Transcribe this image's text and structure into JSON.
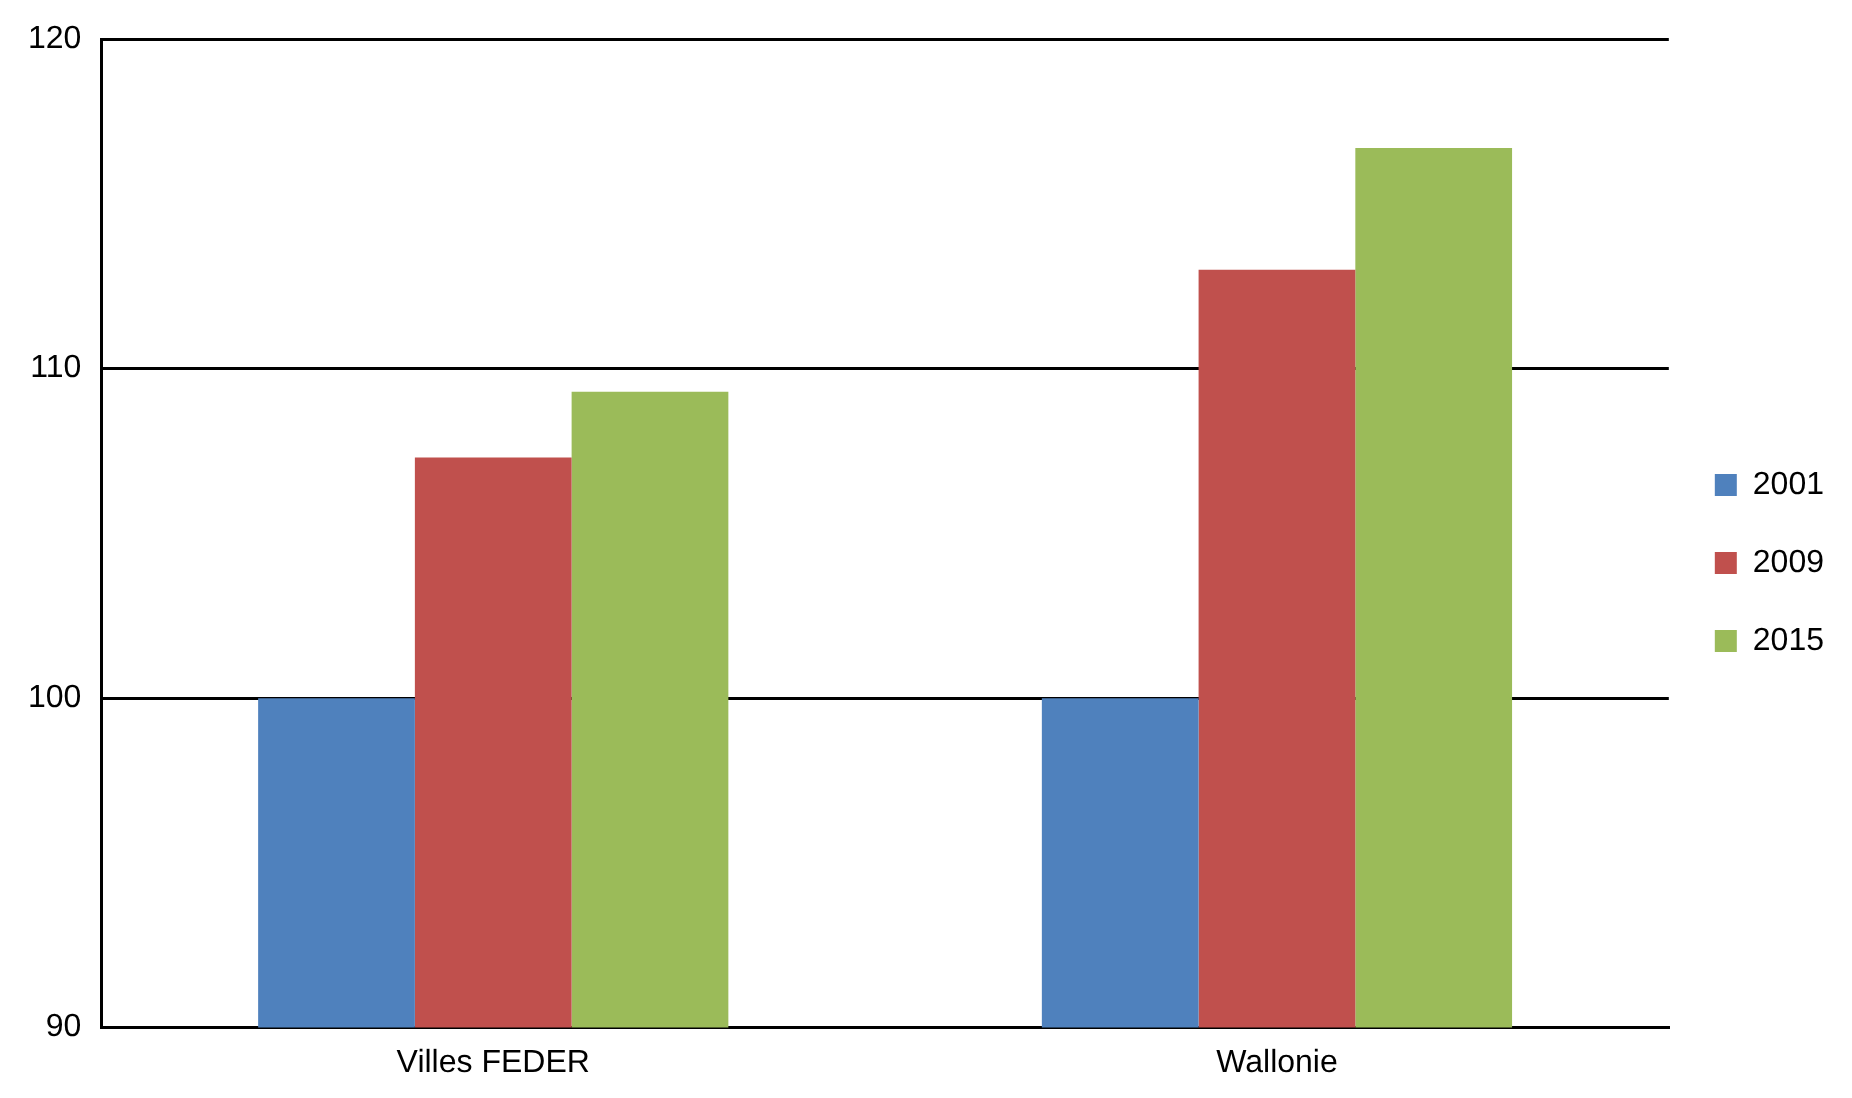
{
  "chart_data": {
    "type": "bar",
    "categories": [
      "Villes FEDER",
      "Wallonie"
    ],
    "series": [
      {
        "name": "2001",
        "color": "#4f81bd",
        "values": [
          100,
          100
        ]
      },
      {
        "name": "2009",
        "color": "#c0504d",
        "values": [
          107.3,
          113.0
        ]
      },
      {
        "name": "2015",
        "color": "#9bbb59",
        "values": [
          109.3,
          116.7
        ]
      }
    ],
    "ylim": [
      90,
      120
    ],
    "yticks": [
      90,
      100,
      110,
      120
    ],
    "grid": "y",
    "legend": "right"
  }
}
